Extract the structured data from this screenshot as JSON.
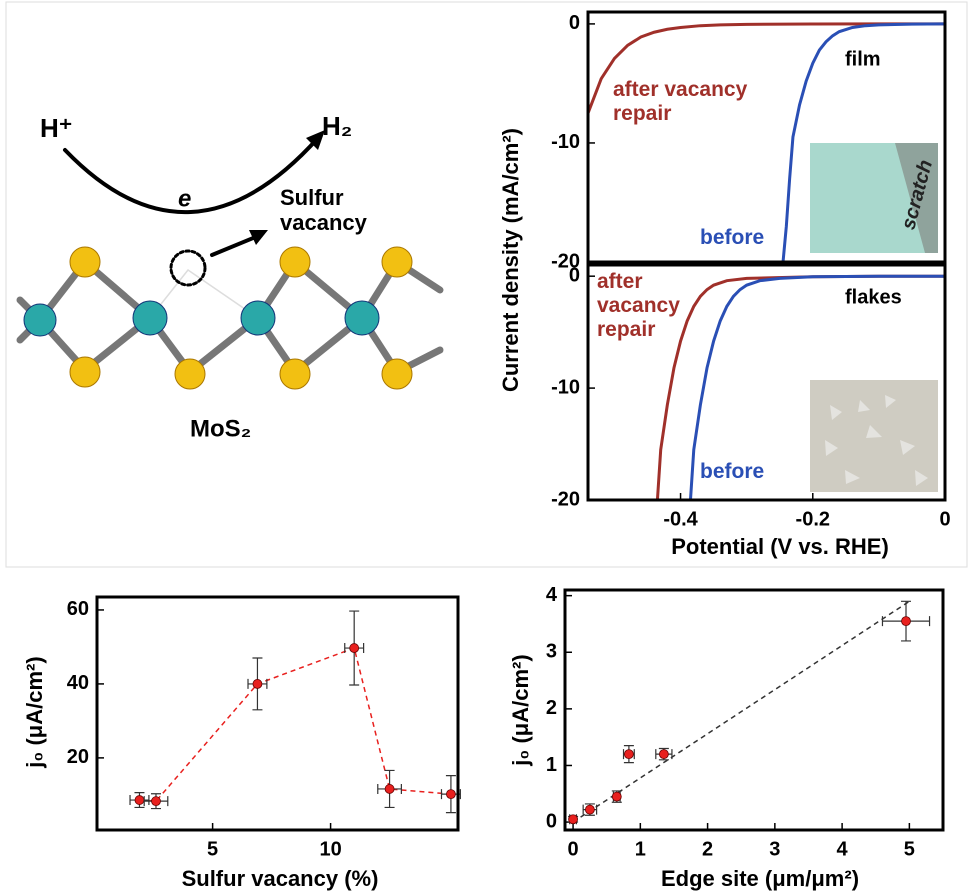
{
  "diagram": {
    "proton": "H⁺",
    "hydrogen": "H₂",
    "electron": "e",
    "vacancy": "Sulfur vacancy",
    "material": "MoS₂"
  },
  "chart_data": [
    {
      "type": "line",
      "ylabel": "Current density (mA/cm²)",
      "annotation": "film",
      "inset_label": "scratch",
      "xlim": [
        -0.54,
        0
      ],
      "ylim": [
        -20,
        1
      ],
      "yticks": [
        0,
        -10,
        -20
      ],
      "series": [
        {
          "name": "after vacancy repair",
          "color": "#a0302a",
          "x": [
            -0.54,
            -0.52,
            -0.5,
            -0.48,
            -0.46,
            -0.44,
            -0.42,
            -0.4,
            -0.37,
            -0.34,
            -0.3,
            -0.2,
            -0.1,
            0
          ],
          "y": [
            -7.5,
            -4.6,
            -2.9,
            -1.8,
            -1.1,
            -0.7,
            -0.45,
            -0.3,
            -0.15,
            -0.08,
            -0.04,
            -0.01,
            0,
            0
          ]
        },
        {
          "name": "before",
          "color": "#2a4fb5",
          "x": [
            -0.245,
            -0.24,
            -0.235,
            -0.23,
            -0.22,
            -0.21,
            -0.2,
            -0.19,
            -0.18,
            -0.17,
            -0.16,
            -0.14,
            -0.12,
            -0.1,
            -0.05,
            0
          ],
          "y": [
            -20,
            -17,
            -13,
            -9.5,
            -6.8,
            -4.8,
            -3.3,
            -2.2,
            -1.5,
            -1,
            -0.65,
            -0.3,
            -0.15,
            -0.08,
            -0.02,
            0
          ]
        }
      ]
    },
    {
      "type": "line",
      "xlabel": "Potential (V vs. RHE)",
      "annotation": "flakes",
      "xlim": [
        -0.54,
        0
      ],
      "ylim": [
        -20,
        1
      ],
      "xticks": [
        -0.4,
        -0.2,
        0
      ],
      "yticks": [
        0,
        -10,
        -20
      ],
      "series": [
        {
          "name": "after vacancy repair",
          "color": "#a0302a",
          "x": [
            -0.435,
            -0.43,
            -0.42,
            -0.41,
            -0.4,
            -0.39,
            -0.38,
            -0.37,
            -0.36,
            -0.35,
            -0.33,
            -0.3,
            -0.2,
            -0.1,
            0
          ],
          "y": [
            -20,
            -15.5,
            -11.5,
            -8.2,
            -5.8,
            -4,
            -2.7,
            -1.8,
            -1.2,
            -0.8,
            -0.4,
            -0.2,
            -0.05,
            0,
            0
          ]
        },
        {
          "name": "before",
          "color": "#2a4fb5",
          "x": [
            -0.385,
            -0.38,
            -0.37,
            -0.36,
            -0.35,
            -0.34,
            -0.33,
            -0.32,
            -0.31,
            -0.3,
            -0.28,
            -0.25,
            -0.2,
            -0.1,
            0
          ],
          "y": [
            -20,
            -15.5,
            -11.5,
            -8.2,
            -5.8,
            -4,
            -2.7,
            -1.8,
            -1.2,
            -0.8,
            -0.4,
            -0.2,
            -0.05,
            0,
            0
          ]
        }
      ]
    },
    {
      "type": "scatter",
      "xlabel": "Sulfur vacancy (%)",
      "ylabel": "j₀ (μA/cm²)",
      "xlim": [
        0.1,
        15.4
      ],
      "ylim": [
        0.5,
        63.5
      ],
      "xticks": [
        5,
        10
      ],
      "yticks": [
        20,
        40,
        60
      ],
      "connect": true,
      "series": [
        {
          "color": "#e8201e",
          "x": [
            1.9,
            2.6,
            6.9,
            11,
            12.5,
            15.1
          ],
          "y": [
            8.6,
            8.3,
            40,
            49.7,
            11.6,
            10.2
          ],
          "xerr": [
            0.4,
            0.5,
            0.4,
            0.4,
            0.5,
            0.4
          ],
          "yerr": [
            2,
            2,
            7,
            10,
            5,
            5
          ]
        }
      ]
    },
    {
      "type": "scatter",
      "xlabel": "Edge site (μm/μm²)",
      "ylabel": "j₀ (μA/cm²)",
      "xlim": [
        -0.12,
        5.5
      ],
      "ylim": [
        -0.14,
        4.1
      ],
      "xticks": [
        0,
        1,
        2,
        3,
        4,
        5
      ],
      "yticks": [
        0,
        1,
        2,
        3,
        4
      ],
      "fit": {
        "x": [
          0,
          5
        ],
        "y": [
          0,
          3.9
        ]
      },
      "series": [
        {
          "color": "#e8201e",
          "x": [
            0,
            0.25,
            0.65,
            0.83,
            1.35,
            4.95
          ],
          "y": [
            0.05,
            0.22,
            0.45,
            1.2,
            1.2,
            3.55
          ],
          "xerr": [
            0.05,
            0.1,
            0.05,
            0.08,
            0.12,
            0.35
          ],
          "yerr": [
            0.05,
            0.1,
            0.1,
            0.15,
            0.1,
            0.35
          ]
        }
      ]
    }
  ]
}
